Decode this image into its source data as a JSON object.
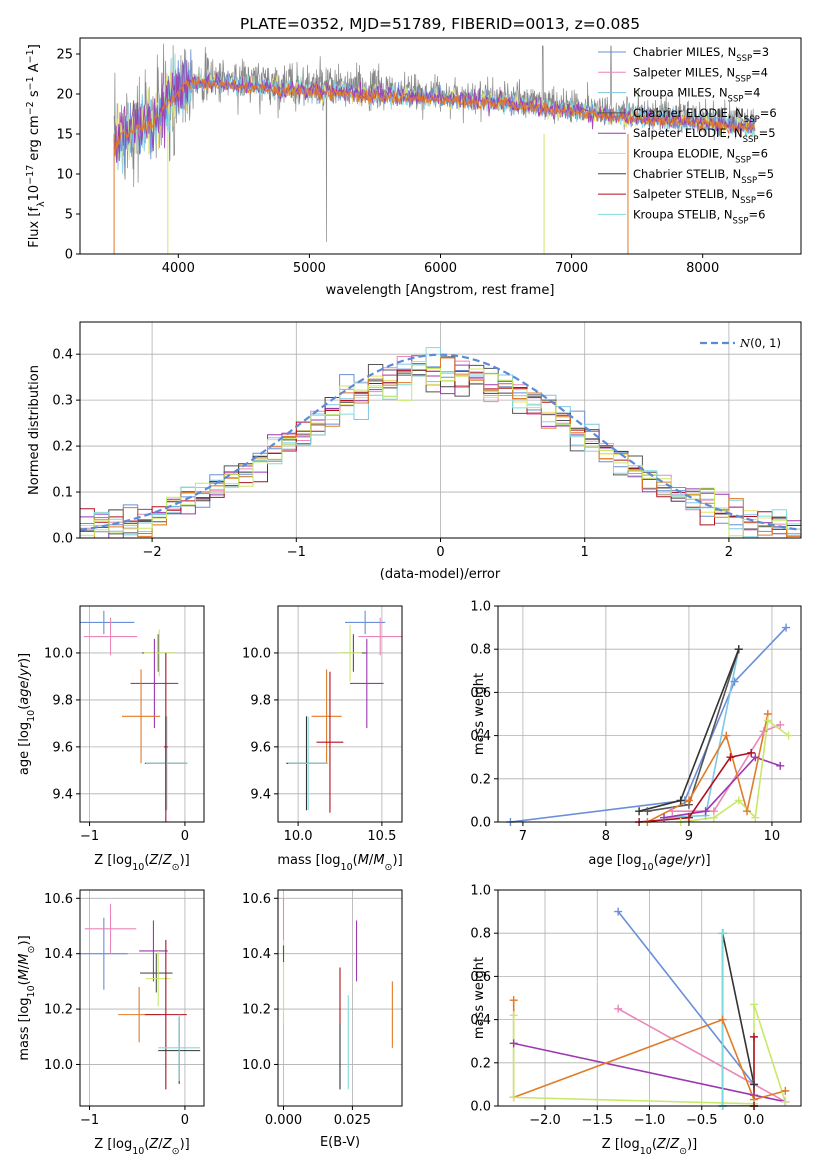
{
  "figure_title": "PLATE=0352, MJD=51789, FIBERID=0013, z=0.085",
  "model_colors": [
    "#6a8fd9",
    "#e887b8",
    "#7ec7e5",
    "#555555",
    "#9c38b0",
    "#e8e070",
    "#444444",
    "#b01020",
    "#80dcdc"
  ],
  "extra_colors": {
    "orange": "#e07b28",
    "lime": "#c8e86a",
    "dark": "#333333",
    "spectrum": "#888888"
  },
  "chart_data": [
    {
      "id": "spectrum",
      "type": "line",
      "title": "PLATE=0352, MJD=51789, FIBERID=0013, z=0.085",
      "xlabel": "wavelength [Angstrom, rest frame]",
      "ylabel": "Flux [f_λ10^-17 erg cm^-2 s^-1 A^-1]",
      "xlim": [
        3250,
        8750
      ],
      "ylim": [
        0,
        27
      ],
      "xticks": [
        4000,
        5000,
        6000,
        7000,
        8000
      ],
      "yticks": [
        0,
        5,
        10,
        15,
        20,
        25
      ],
      "legend_position": "top-right",
      "data_range": [
        3510,
        8400
      ],
      "continuum": [
        [
          3510,
          14
        ],
        [
          3600,
          16
        ],
        [
          3800,
          17
        ],
        [
          3950,
          20
        ],
        [
          4050,
          22
        ],
        [
          4300,
          22
        ],
        [
          4600,
          21.5
        ],
        [
          5000,
          21
        ],
        [
          5500,
          20.5
        ],
        [
          6000,
          20
        ],
        [
          6500,
          19.5
        ],
        [
          7000,
          18.5
        ],
        [
          7300,
          18
        ],
        [
          7600,
          17.5
        ],
        [
          8000,
          17
        ],
        [
          8400,
          16.5
        ]
      ],
      "series": [
        {
          "name": "Chabrier MILES, N_SSP=3",
          "label_main": "Chabrier MILES, N",
          "sub": "SSP",
          "tail": "=3",
          "color": "#6a8fd9"
        },
        {
          "name": "Salpeter MILES, N_SSP=4",
          "label_main": "Salpeter MILES, N",
          "sub": "SSP",
          "tail": "=4",
          "color": "#e887b8"
        },
        {
          "name": "Kroupa MILES, N_SSP=4",
          "label_main": "Kroupa MILES, N",
          "sub": "SSP",
          "tail": "=4",
          "color": "#7ec7e5"
        },
        {
          "name": "Chabrier ELODIE, N_SSP=6",
          "label_main": "Chabrier ELODIE, N",
          "sub": "SSP",
          "tail": "=6",
          "color": "#555555"
        },
        {
          "name": "Salpeter ELODIE, N_SSP=5",
          "label_main": "Salpeter ELODIE, N",
          "sub": "SSP",
          "tail": "=5",
          "color": "#9c38b0"
        },
        {
          "name": "Kroupa ELODIE, N_SSP=6",
          "label_main": "Kroupa ELODIE, N",
          "sub": "SSP",
          "tail": "=6",
          "color": "#e8e070"
        },
        {
          "name": "Chabrier STELIB, N_SSP=5",
          "label_main": "Chabrier STELIB, N",
          "sub": "SSP",
          "tail": "=5",
          "color": "#444444"
        },
        {
          "name": "Salpeter STELIB, N_SSP=6",
          "label_main": "Salpeter STELIB, N",
          "sub": "SSP",
          "tail": "=6",
          "color": "#b01020"
        },
        {
          "name": "Kroupa STELIB, N_SSP=6",
          "label_main": "Kroupa STELIB, N",
          "sub": "SSP",
          "tail": "=6",
          "color": "#80dcdc"
        }
      ]
    },
    {
      "id": "residuals",
      "type": "line",
      "xlabel": "(data-model)/error",
      "ylabel": "Normed distribution",
      "xlim": [
        -2.5,
        2.5
      ],
      "ylim": [
        0,
        0.47
      ],
      "xticks": [
        -2,
        -1,
        0,
        1,
        2
      ],
      "yticks": [
        0.0,
        0.1,
        0.2,
        0.3,
        0.4
      ],
      "grid": true,
      "legend_position": "top-right",
      "gaussian_label": "N(0,1)",
      "bin_width": 0.1
    },
    {
      "id": "age_vs_Z",
      "type": "scatter",
      "xlabel": "Z [log10(Z/Z☉)]",
      "ylabel": "age [log10(age/yr)]",
      "xlim": [
        -1.1,
        0.2
      ],
      "ylim": [
        9.28,
        10.2
      ],
      "xticks": [
        -1,
        0
      ],
      "yticks": [
        9.4,
        9.6,
        9.8,
        10.0
      ],
      "grid": true,
      "points": [
        {
          "x": -0.85,
          "y": 10.13,
          "xerr": 0.32,
          "yerr": 0.05,
          "c": "#6a8fd9"
        },
        {
          "x": -0.78,
          "y": 10.07,
          "xerr": 0.28,
          "yerr": 0.08,
          "c": "#e887b8"
        },
        {
          "x": -0.28,
          "y": 10.0,
          "xerr": 0.17,
          "yerr": 0.08,
          "c": "#555555"
        },
        {
          "x": -0.27,
          "y": 10.0,
          "xerr": 0.16,
          "yerr": 0.1,
          "c": "#c8e86a"
        },
        {
          "x": -0.32,
          "y": 9.87,
          "xerr": 0.25,
          "yerr": 0.19,
          "c": "#9c38b0"
        },
        {
          "x": -0.46,
          "y": 9.73,
          "xerr": 0.2,
          "yerr": 0.2,
          "c": "#e07b28"
        },
        {
          "x": -0.2,
          "y": 9.53,
          "xerr": 0.22,
          "yerr": 0.2,
          "c": "#333333"
        },
        {
          "x": -0.19,
          "y": 9.53,
          "xerr": 0.22,
          "yerr": 0.2,
          "c": "#80dcdc"
        },
        {
          "x": -0.2,
          "y": 9.6,
          "xerr": 0.02,
          "yerr": 0.4,
          "c": "#b01020"
        }
      ]
    },
    {
      "id": "age_vs_mass",
      "type": "scatter",
      "xlabel": "mass [log10(M/M☉)]",
      "ylabel": "",
      "xlim": [
        9.88,
        10.62
      ],
      "ylim": [
        9.28,
        10.2
      ],
      "xticks": [
        10.0,
        10.5
      ],
      "yticks": [
        9.4,
        9.6,
        9.8,
        10.0
      ],
      "grid": true,
      "points": [
        {
          "x": 10.4,
          "y": 10.13,
          "xerr": 0.12,
          "yerr": 0.05,
          "c": "#6a8fd9"
        },
        {
          "x": 10.49,
          "y": 10.07,
          "xerr": 0.13,
          "yerr": 0.08,
          "c": "#e887b8"
        },
        {
          "x": 10.33,
          "y": 10.0,
          "xerr": 0.08,
          "yerr": 0.08,
          "c": "#555555"
        },
        {
          "x": 10.31,
          "y": 10.0,
          "xerr": 0.07,
          "yerr": 0.12,
          "c": "#c8e86a"
        },
        {
          "x": 10.41,
          "y": 9.87,
          "xerr": 0.1,
          "yerr": 0.19,
          "c": "#9c38b0"
        },
        {
          "x": 10.17,
          "y": 9.73,
          "xerr": 0.09,
          "yerr": 0.2,
          "c": "#e07b28"
        },
        {
          "x": 10.05,
          "y": 9.53,
          "xerr": 0.12,
          "yerr": 0.2,
          "c": "#333333"
        },
        {
          "x": 10.06,
          "y": 9.53,
          "xerr": 0.12,
          "yerr": 0.2,
          "c": "#80dcdc"
        },
        {
          "x": 10.19,
          "y": 9.62,
          "xerr": 0.08,
          "yerr": 0.3,
          "c": "#b01020"
        }
      ]
    },
    {
      "id": "weight_vs_age",
      "type": "line",
      "xlabel": "age [log10(age/yr)]",
      "ylabel": "mass weight",
      "xlim": [
        6.7,
        10.35
      ],
      "ylim": [
        0,
        1.0
      ],
      "xticks": [
        7,
        8,
        9,
        10
      ],
      "yticks": [
        0.0,
        0.2,
        0.4,
        0.6,
        0.8,
        1.0
      ],
      "grid": true,
      "series": [
        {
          "c": "#6a8fd9",
          "pts": [
            [
              6.85,
              0.0
            ],
            [
              8.95,
              0.1
            ],
            [
              9.55,
              0.65
            ],
            [
              10.17,
              0.9
            ]
          ]
        },
        {
          "c": "#e887b8",
          "pts": [
            [
              8.8,
              0.05
            ],
            [
              9.3,
              0.05
            ],
            [
              9.9,
              0.42
            ],
            [
              10.1,
              0.45
            ]
          ]
        },
        {
          "c": "#7ec7e5",
          "pts": [
            [
              8.7,
              0.02
            ],
            [
              9.2,
              0.03
            ],
            [
              9.6,
              0.8
            ]
          ]
        },
        {
          "c": "#555555",
          "pts": [
            [
              8.5,
              0.05
            ],
            [
              9.0,
              0.08
            ],
            [
              9.6,
              0.8
            ]
          ]
        },
        {
          "c": "#9c38b0",
          "pts": [
            [
              8.7,
              0.02
            ],
            [
              9.2,
              0.05
            ],
            [
              9.8,
              0.3
            ],
            [
              10.1,
              0.26
            ]
          ]
        },
        {
          "c": "#e07b28",
          "pts": [
            [
              8.5,
              0.0
            ],
            [
              9.0,
              0.1
            ],
            [
              9.45,
              0.4
            ],
            [
              9.7,
              0.05
            ],
            [
              9.95,
              0.5
            ]
          ]
        },
        {
          "c": "#c8e86a",
          "pts": [
            [
              8.9,
              0.0
            ],
            [
              9.3,
              0.02
            ],
            [
              9.6,
              0.1
            ],
            [
              9.8,
              0.02
            ],
            [
              9.95,
              0.47
            ],
            [
              10.2,
              0.4
            ]
          ]
        },
        {
          "c": "#333333",
          "pts": [
            [
              8.4,
              0.05
            ],
            [
              8.9,
              0.1
            ],
            [
              9.6,
              0.8
            ]
          ]
        },
        {
          "c": "#b01020",
          "pts": [
            [
              8.4,
              0.0
            ],
            [
              9.0,
              0.02
            ],
            [
              9.5,
              0.3
            ],
            [
              9.75,
              0.32
            ]
          ]
        }
      ]
    },
    {
      "id": "mass_vs_Z",
      "type": "scatter",
      "xlabel": "Z [log10(Z/Z☉)]",
      "ylabel": "mass [log10(M/M☉)]",
      "xlim": [
        -1.1,
        0.2
      ],
      "ylim": [
        9.85,
        10.63
      ],
      "xticks": [
        -1,
        0
      ],
      "yticks": [
        10.0,
        10.2,
        10.4,
        10.6
      ],
      "grid": true,
      "points": [
        {
          "x": -0.85,
          "y": 10.4,
          "xerr": 0.25,
          "yerr": 0.13,
          "c": "#6a8fd9"
        },
        {
          "x": -0.78,
          "y": 10.49,
          "xerr": 0.27,
          "yerr": 0.09,
          "c": "#e887b8"
        },
        {
          "x": -0.33,
          "y": 10.41,
          "xerr": 0.15,
          "yerr": 0.11,
          "c": "#9c38b0"
        },
        {
          "x": -0.3,
          "y": 10.33,
          "xerr": 0.17,
          "yerr": 0.07,
          "c": "#555555"
        },
        {
          "x": -0.28,
          "y": 10.31,
          "xerr": 0.13,
          "yerr": 0.1,
          "c": "#c8e86a"
        },
        {
          "x": -0.48,
          "y": 10.18,
          "xerr": 0.22,
          "yerr": 0.1,
          "c": "#e07b28"
        },
        {
          "x": -0.2,
          "y": 10.18,
          "xerr": 0.22,
          "yerr": 0.27,
          "c": "#b01020"
        },
        {
          "x": -0.06,
          "y": 10.05,
          "xerr": 0.22,
          "yerr": 0.12,
          "c": "#333333"
        },
        {
          "x": -0.06,
          "y": 10.06,
          "xerr": 0.22,
          "yerr": 0.12,
          "c": "#80dcdc"
        }
      ]
    },
    {
      "id": "mass_vs_ebv",
      "type": "scatter",
      "xlabel": "E(B-V)",
      "ylabel": "",
      "xlim": [
        -0.002,
        0.043
      ],
      "ylim": [
        9.85,
        10.63
      ],
      "xticks": [
        0.0,
        0.025
      ],
      "xtick_labels": [
        "0.000",
        "0.025"
      ],
      "yticks": [
        10.0,
        10.2,
        10.4,
        10.6
      ],
      "grid": true,
      "points": [
        {
          "x": 0.0,
          "y": 10.5,
          "xerr": 0,
          "yerr": 0.1,
          "c": "#e887b8"
        },
        {
          "x": 0.0,
          "y": 10.3,
          "xerr": 0,
          "yerr": 0.15,
          "c": "#c8e86a"
        },
        {
          "x": 0.0,
          "y": 10.4,
          "xerr": 0,
          "yerr": 0.03,
          "c": "#555555"
        },
        {
          "x": 0.0205,
          "y": 10.25,
          "xerr": 0,
          "yerr": 0.1,
          "c": "#b01020"
        },
        {
          "x": 0.0205,
          "y": 10.03,
          "xerr": 0,
          "yerr": 0.12,
          "c": "#333333"
        },
        {
          "x": 0.0235,
          "y": 10.08,
          "xerr": 0,
          "yerr": 0.17,
          "c": "#80dcdc"
        },
        {
          "x": 0.0265,
          "y": 10.41,
          "xerr": 0,
          "yerr": 0.11,
          "c": "#9c38b0"
        },
        {
          "x": 0.0395,
          "y": 10.18,
          "xerr": 0,
          "yerr": 0.12,
          "c": "#e07b28"
        }
      ]
    },
    {
      "id": "weight_vs_Z",
      "type": "line",
      "xlabel": "Z [log10(Z/Z☉)]",
      "ylabel": "mass weight",
      "xlim": [
        -2.45,
        0.45
      ],
      "ylim": [
        0,
        1.0
      ],
      "xticks": [
        -2.0,
        -1.5,
        -1.0,
        -0.5,
        0.0
      ],
      "yticks": [
        0.0,
        0.2,
        0.4,
        0.6,
        0.8,
        1.0
      ],
      "grid": true,
      "series": [
        {
          "c": "#6a8fd9",
          "pts": [
            [
              -1.3,
              0.9
            ],
            [
              0.0,
              0.1
            ],
            [
              0.0,
              0.0
            ]
          ]
        },
        {
          "c": "#e887b8",
          "pts": [
            [
              -1.3,
              0.45
            ],
            [
              0.3,
              0.02
            ]
          ]
        },
        {
          "c": "#9c38b0",
          "pts": [
            [
              -2.3,
              0.29
            ],
            [
              0.0,
              0.05
            ],
            [
              0.3,
              0.02
            ]
          ]
        },
        {
          "c": "#e07b28",
          "pts": [
            [
              -2.3,
              0.49
            ],
            [
              -2.3,
              0.04
            ],
            [
              -0.3,
              0.4
            ],
            [
              0.0,
              0.03
            ],
            [
              0.3,
              0.07
            ]
          ]
        },
        {
          "c": "#555555",
          "pts": [
            [
              -0.3,
              0.8
            ],
            [
              -0.3,
              0.0
            ],
            [
              0.0,
              0.0
            ]
          ]
        },
        {
          "c": "#333333",
          "pts": [
            [
              -0.3,
              0.8
            ],
            [
              0.0,
              0.1
            ],
            [
              0.0,
              0.0
            ]
          ]
        },
        {
          "c": "#80dcdc",
          "pts": [
            [
              -0.3,
              0.8
            ],
            [
              -0.3,
              0.0
            ],
            [
              0.0,
              0.0
            ]
          ]
        },
        {
          "c": "#c8e86a",
          "pts": [
            [
              -2.3,
              0.42
            ],
            [
              -2.3,
              0.04
            ],
            [
              0.0,
              0.01
            ],
            [
              0.0,
              0.47
            ],
            [
              0.3,
              0.02
            ]
          ]
        },
        {
          "c": "#b01020",
          "pts": [
            [
              0.0,
              0.32
            ],
            [
              0.0,
              0.0
            ]
          ]
        }
      ]
    }
  ]
}
